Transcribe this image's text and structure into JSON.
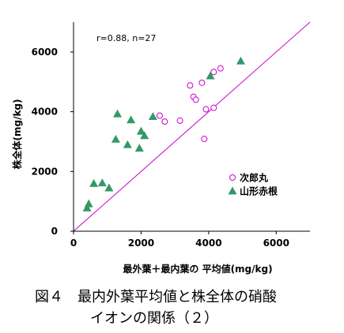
{
  "chart_data": {
    "type": "scatter",
    "annotation": "r=0.88, n=27",
    "xlabel": "最外葉＋最内葉の 平均値(mg/kg)",
    "ylabel": "株全体(mg/kg)",
    "xlim": [
      0,
      7000
    ],
    "ylim": [
      0,
      7000
    ],
    "x_ticks": [
      "0",
      "2000",
      "4000",
      "6000"
    ],
    "y_ticks": [
      "0",
      "2000",
      "4000",
      "6000"
    ],
    "legend_position": "right",
    "reference_line": {
      "from": [
        0,
        0
      ],
      "to": [
        7000,
        7000
      ],
      "color": "#cc00cc"
    },
    "series": [
      {
        "name": "次郎丸",
        "marker": "circle-open",
        "color": "#cc00cc",
        "points": [
          [
            2550,
            3870
          ],
          [
            2700,
            3670
          ],
          [
            3150,
            3700
          ],
          [
            3450,
            4880
          ],
          [
            3550,
            4500
          ],
          [
            3620,
            4400
          ],
          [
            3800,
            4970
          ],
          [
            3870,
            3090
          ],
          [
            3920,
            4080
          ],
          [
            4150,
            4130
          ],
          [
            4150,
            5330
          ],
          [
            4350,
            5450
          ]
        ]
      },
      {
        "name": "山形赤根",
        "marker": "triangle-filled",
        "color": "#339966",
        "points": [
          [
            400,
            780
          ],
          [
            450,
            920
          ],
          [
            600,
            1600
          ],
          [
            850,
            1620
          ],
          [
            1050,
            1450
          ],
          [
            1250,
            3080
          ],
          [
            1300,
            3930
          ],
          [
            1600,
            2900
          ],
          [
            1700,
            3730
          ],
          [
            1950,
            2780
          ],
          [
            2000,
            3350
          ],
          [
            2100,
            3200
          ],
          [
            2350,
            3840
          ],
          [
            4050,
            5200
          ],
          [
            4950,
            5700
          ]
        ]
      }
    ]
  },
  "caption": {
    "line1": "図４　最内外葉平均値と株全体の硝酸",
    "line2": "イオンの関係（２）"
  }
}
